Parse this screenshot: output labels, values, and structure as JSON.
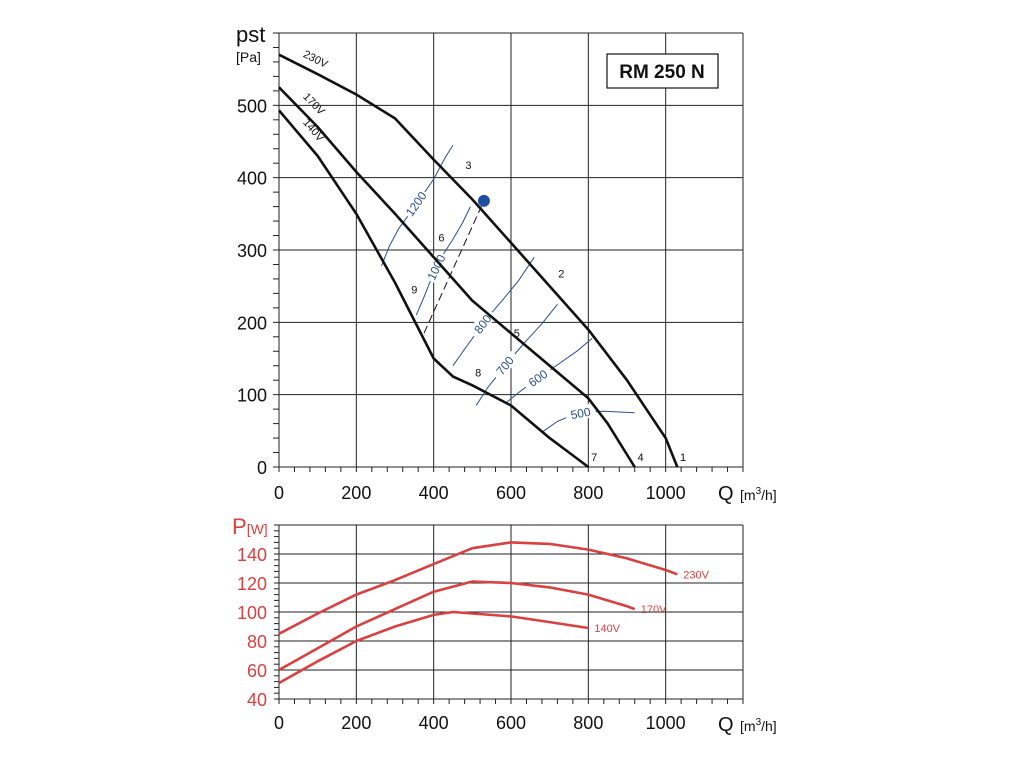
{
  "chart_data": [
    {
      "type": "line",
      "title": "RM 250 N",
      "ylabel": "pst",
      "yunit": "[Pa]",
      "xlabel": "Q",
      "xunit_prefix": "[m",
      "xunit_sup": "3",
      "xunit_suffix": "/h]",
      "xlim": [
        0,
        1200
      ],
      "ylim": [
        0,
        600
      ],
      "x_ticks": [
        0,
        200,
        400,
        600,
        800,
        1000
      ],
      "y_ticks": [
        0,
        100,
        200,
        300,
        400,
        500
      ],
      "grid": true,
      "series": [
        {
          "name": "230V",
          "x": [
            0,
            100,
            200,
            300,
            400,
            500,
            600,
            700,
            800,
            900,
            1000,
            1030
          ],
          "y": [
            570,
            543,
            515,
            482,
            425,
            370,
            310,
            250,
            190,
            120,
            40,
            0
          ]
        },
        {
          "name": "170V",
          "x": [
            0,
            100,
            200,
            300,
            400,
            500,
            600,
            700,
            800,
            850,
            920
          ],
          "y": [
            525,
            470,
            408,
            350,
            290,
            230,
            185,
            140,
            95,
            60,
            0
          ]
        },
        {
          "name": "140V",
          "x": [
            0,
            100,
            200,
            300,
            400,
            450,
            500,
            600,
            700,
            750,
            800
          ],
          "y": [
            493,
            430,
            350,
            255,
            150,
            125,
            113,
            85,
            40,
            20,
            0
          ]
        }
      ],
      "speed_curves": [
        {
          "label": "1200",
          "x": [
            265,
            285,
            310,
            340,
            370,
            400,
            430,
            450
          ],
          "y": [
            278,
            305,
            330,
            352,
            375,
            398,
            428,
            445
          ]
        },
        {
          "label": "1000",
          "x": [
            355,
            375,
            395,
            420,
            450,
            475,
            495
          ],
          "y": [
            210,
            235,
            262,
            290,
            315,
            338,
            360
          ]
        },
        {
          "label": "800",
          "x": [
            450,
            480,
            510,
            545,
            580,
            620,
            660
          ],
          "y": [
            140,
            163,
            185,
            210,
            232,
            258,
            290
          ]
        },
        {
          "label": "700",
          "x": [
            510,
            540,
            570,
            600,
            640,
            680,
            720
          ],
          "y": [
            85,
            110,
            130,
            150,
            175,
            198,
            225
          ]
        },
        {
          "label": "600",
          "x": [
            590,
            620,
            650,
            690,
            730,
            770,
            810
          ],
          "y": [
            90,
            103,
            115,
            130,
            145,
            160,
            178
          ]
        },
        {
          "label": "500",
          "x": [
            680,
            720,
            760,
            800,
            840,
            880,
            920
          ],
          "y": [
            48,
            63,
            72,
            76,
            77,
            76,
            75
          ]
        }
      ],
      "system_curve": {
        "x": [
          375,
          530
        ],
        "y": [
          185,
          368
        ]
      },
      "operating_point": {
        "x": 530,
        "y": 368,
        "color": "#1e4fa0"
      },
      "point_labels": [
        {
          "label": "1",
          "x": 1045,
          "y": 8
        },
        {
          "label": "2",
          "x": 730,
          "y": 262
        },
        {
          "label": "3",
          "x": 490,
          "y": 412
        },
        {
          "label": "4",
          "x": 935,
          "y": 8
        },
        {
          "label": "5",
          "x": 615,
          "y": 180
        },
        {
          "label": "6",
          "x": 420,
          "y": 312
        },
        {
          "label": "7",
          "x": 815,
          "y": 8
        },
        {
          "label": "8",
          "x": 515,
          "y": 125
        },
        {
          "label": "9",
          "x": 350,
          "y": 240
        }
      ]
    },
    {
      "type": "line",
      "ylabel": "P",
      "yunit": "[W]",
      "xlabel": "Q",
      "xunit_prefix": "[m",
      "xunit_sup": "3",
      "xunit_suffix": "/h]",
      "xlim": [
        0,
        1200
      ],
      "ylim": [
        40,
        160
      ],
      "x_ticks": [
        0,
        200,
        400,
        600,
        800,
        1000
      ],
      "y_ticks": [
        40,
        60,
        80,
        100,
        120,
        140
      ],
      "grid": true,
      "series": [
        {
          "name": "230V",
          "x": [
            0,
            100,
            200,
            300,
            400,
            500,
            600,
            700,
            800,
            900,
            1000,
            1030
          ],
          "y": [
            85,
            99,
            112,
            122,
            133,
            144,
            148,
            147,
            143,
            137,
            129,
            126
          ]
        },
        {
          "name": "170V",
          "x": [
            0,
            100,
            200,
            300,
            400,
            500,
            600,
            700,
            800,
            900,
            920
          ],
          "y": [
            60,
            75,
            90,
            102,
            114,
            121,
            120,
            117,
            112,
            104,
            102
          ]
        },
        {
          "name": "140V",
          "x": [
            0,
            100,
            200,
            300,
            400,
            450,
            500,
            600,
            700,
            800
          ],
          "y": [
            51,
            66,
            80,
            90,
            98,
            100,
            99,
            97,
            93,
            89
          ]
        }
      ],
      "color": "#d94040"
    }
  ]
}
